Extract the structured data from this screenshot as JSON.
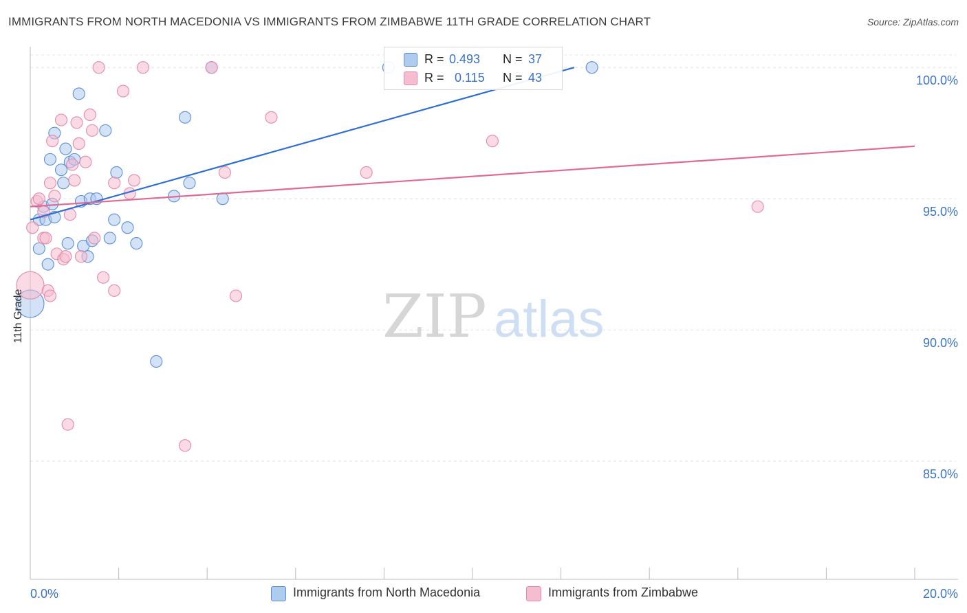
{
  "header": {
    "title": "IMMIGRANTS FROM NORTH MACEDONIA VS IMMIGRANTS FROM ZIMBABWE 11TH GRADE CORRELATION CHART",
    "source": "Source: ZipAtlas.com"
  },
  "watermark": {
    "zip": "ZIP",
    "atlas": "atlas"
  },
  "legend": {
    "rows": [
      {
        "r_label": "R =",
        "r_value": "0.493",
        "n_label": "N =",
        "n_value": "37"
      },
      {
        "r_label": "R =",
        "r_value": "0.115",
        "n_label": "N =",
        "n_value": "43"
      }
    ]
  },
  "chart_data": {
    "type": "scatter",
    "title": "IMMIGRANTS FROM NORTH MACEDONIA VS IMMIGRANTS FROM ZIMBABWE 11TH GRADE CORRELATION CHART",
    "xlabel": "",
    "ylabel": "11th Grade",
    "xlim": [
      0,
      20
    ],
    "ylim": [
      80.5,
      101
    ],
    "x_tick_labels": [
      "0.0%",
      "20.0%"
    ],
    "y_ticks": [
      {
        "value": 100,
        "label": "100.0%"
      },
      {
        "value": 95,
        "label": "95.0%"
      },
      {
        "value": 90,
        "label": "90.0%"
      },
      {
        "value": 85,
        "label": "85.0%"
      }
    ],
    "colors": {
      "macedonia_fill": "#aecbf0",
      "macedonia_stroke": "#5b8fd6",
      "macedonia_line": "#2f6fd0",
      "zimbabwe_fill": "#f6bccf",
      "zimbabwe_stroke": "#e48aa8",
      "zimbabwe_line": "#e06a94",
      "axis_label": "#3a73c4",
      "grid": "#e3e3e3"
    },
    "series": [
      {
        "name": "Immigrants from North Macedonia",
        "R": 0.493,
        "N": 37,
        "trend": {
          "x": [
            0,
            12.3
          ],
          "y": [
            94.2,
            100.0
          ]
        },
        "points": [
          [
            0.2,
            93.1
          ],
          [
            0.2,
            94.2
          ],
          [
            0.3,
            94.7
          ],
          [
            0.35,
            94.2
          ],
          [
            0.4,
            92.5
          ],
          [
            0.45,
            96.5
          ],
          [
            0.5,
            94.8
          ],
          [
            0.55,
            94.3
          ],
          [
            0.55,
            97.5
          ],
          [
            0.7,
            96.1
          ],
          [
            0.75,
            95.6
          ],
          [
            0.8,
            96.9
          ],
          [
            0.85,
            93.3
          ],
          [
            0.9,
            96.4
          ],
          [
            1.0,
            96.5
          ],
          [
            1.1,
            99.0
          ],
          [
            1.15,
            94.9
          ],
          [
            1.2,
            93.2
          ],
          [
            1.3,
            92.8
          ],
          [
            1.35,
            95.0
          ],
          [
            1.4,
            93.4
          ],
          [
            1.5,
            95.0
          ],
          [
            1.7,
            97.6
          ],
          [
            1.8,
            93.5
          ],
          [
            1.9,
            94.2
          ],
          [
            1.95,
            96.0
          ],
          [
            2.2,
            93.9
          ],
          [
            2.4,
            93.3
          ],
          [
            2.85,
            88.8
          ],
          [
            3.25,
            95.1
          ],
          [
            3.5,
            98.1
          ],
          [
            3.6,
            95.6
          ],
          [
            4.1,
            100.0
          ],
          [
            4.35,
            95.0
          ],
          [
            8.1,
            100.0
          ],
          [
            12.7,
            100.0
          ],
          [
            0.0,
            91.0
          ]
        ]
      },
      {
        "name": "Immigrants from Zimbabwe",
        "R": 0.115,
        "N": 43,
        "trend": {
          "x": [
            0,
            20
          ],
          "y": [
            94.7,
            97.0
          ]
        },
        "points": [
          [
            0.0,
            91.7
          ],
          [
            0.05,
            93.9
          ],
          [
            0.15,
            94.9
          ],
          [
            0.2,
            95.0
          ],
          [
            0.3,
            93.5
          ],
          [
            0.35,
            93.5
          ],
          [
            0.4,
            91.5
          ],
          [
            0.45,
            91.3
          ],
          [
            0.45,
            95.6
          ],
          [
            0.5,
            97.2
          ],
          [
            0.55,
            95.1
          ],
          [
            0.6,
            92.9
          ],
          [
            0.7,
            98.0
          ],
          [
            0.75,
            92.7
          ],
          [
            0.8,
            92.8
          ],
          [
            0.85,
            86.4
          ],
          [
            0.9,
            94.4
          ],
          [
            0.95,
            96.3
          ],
          [
            1.0,
            95.7
          ],
          [
            1.05,
            97.9
          ],
          [
            1.1,
            97.1
          ],
          [
            1.15,
            92.8
          ],
          [
            1.25,
            96.4
          ],
          [
            1.35,
            98.2
          ],
          [
            1.4,
            97.6
          ],
          [
            1.45,
            93.5
          ],
          [
            1.55,
            100.0
          ],
          [
            1.65,
            92.0
          ],
          [
            1.9,
            95.6
          ],
          [
            1.9,
            91.5
          ],
          [
            2.1,
            99.1
          ],
          [
            2.25,
            95.2
          ],
          [
            2.35,
            95.7
          ],
          [
            2.55,
            100.0
          ],
          [
            3.5,
            85.6
          ],
          [
            4.1,
            100.0
          ],
          [
            4.4,
            96.0
          ],
          [
            4.65,
            91.3
          ],
          [
            5.45,
            98.1
          ],
          [
            7.6,
            96.0
          ],
          [
            10.45,
            97.2
          ],
          [
            16.45,
            94.7
          ],
          [
            0.3,
            94.5
          ]
        ]
      }
    ]
  },
  "bottom_legend": [
    {
      "label": "Immigrants from North Macedonia"
    },
    {
      "label": "Immigrants from Zimbabwe"
    }
  ]
}
